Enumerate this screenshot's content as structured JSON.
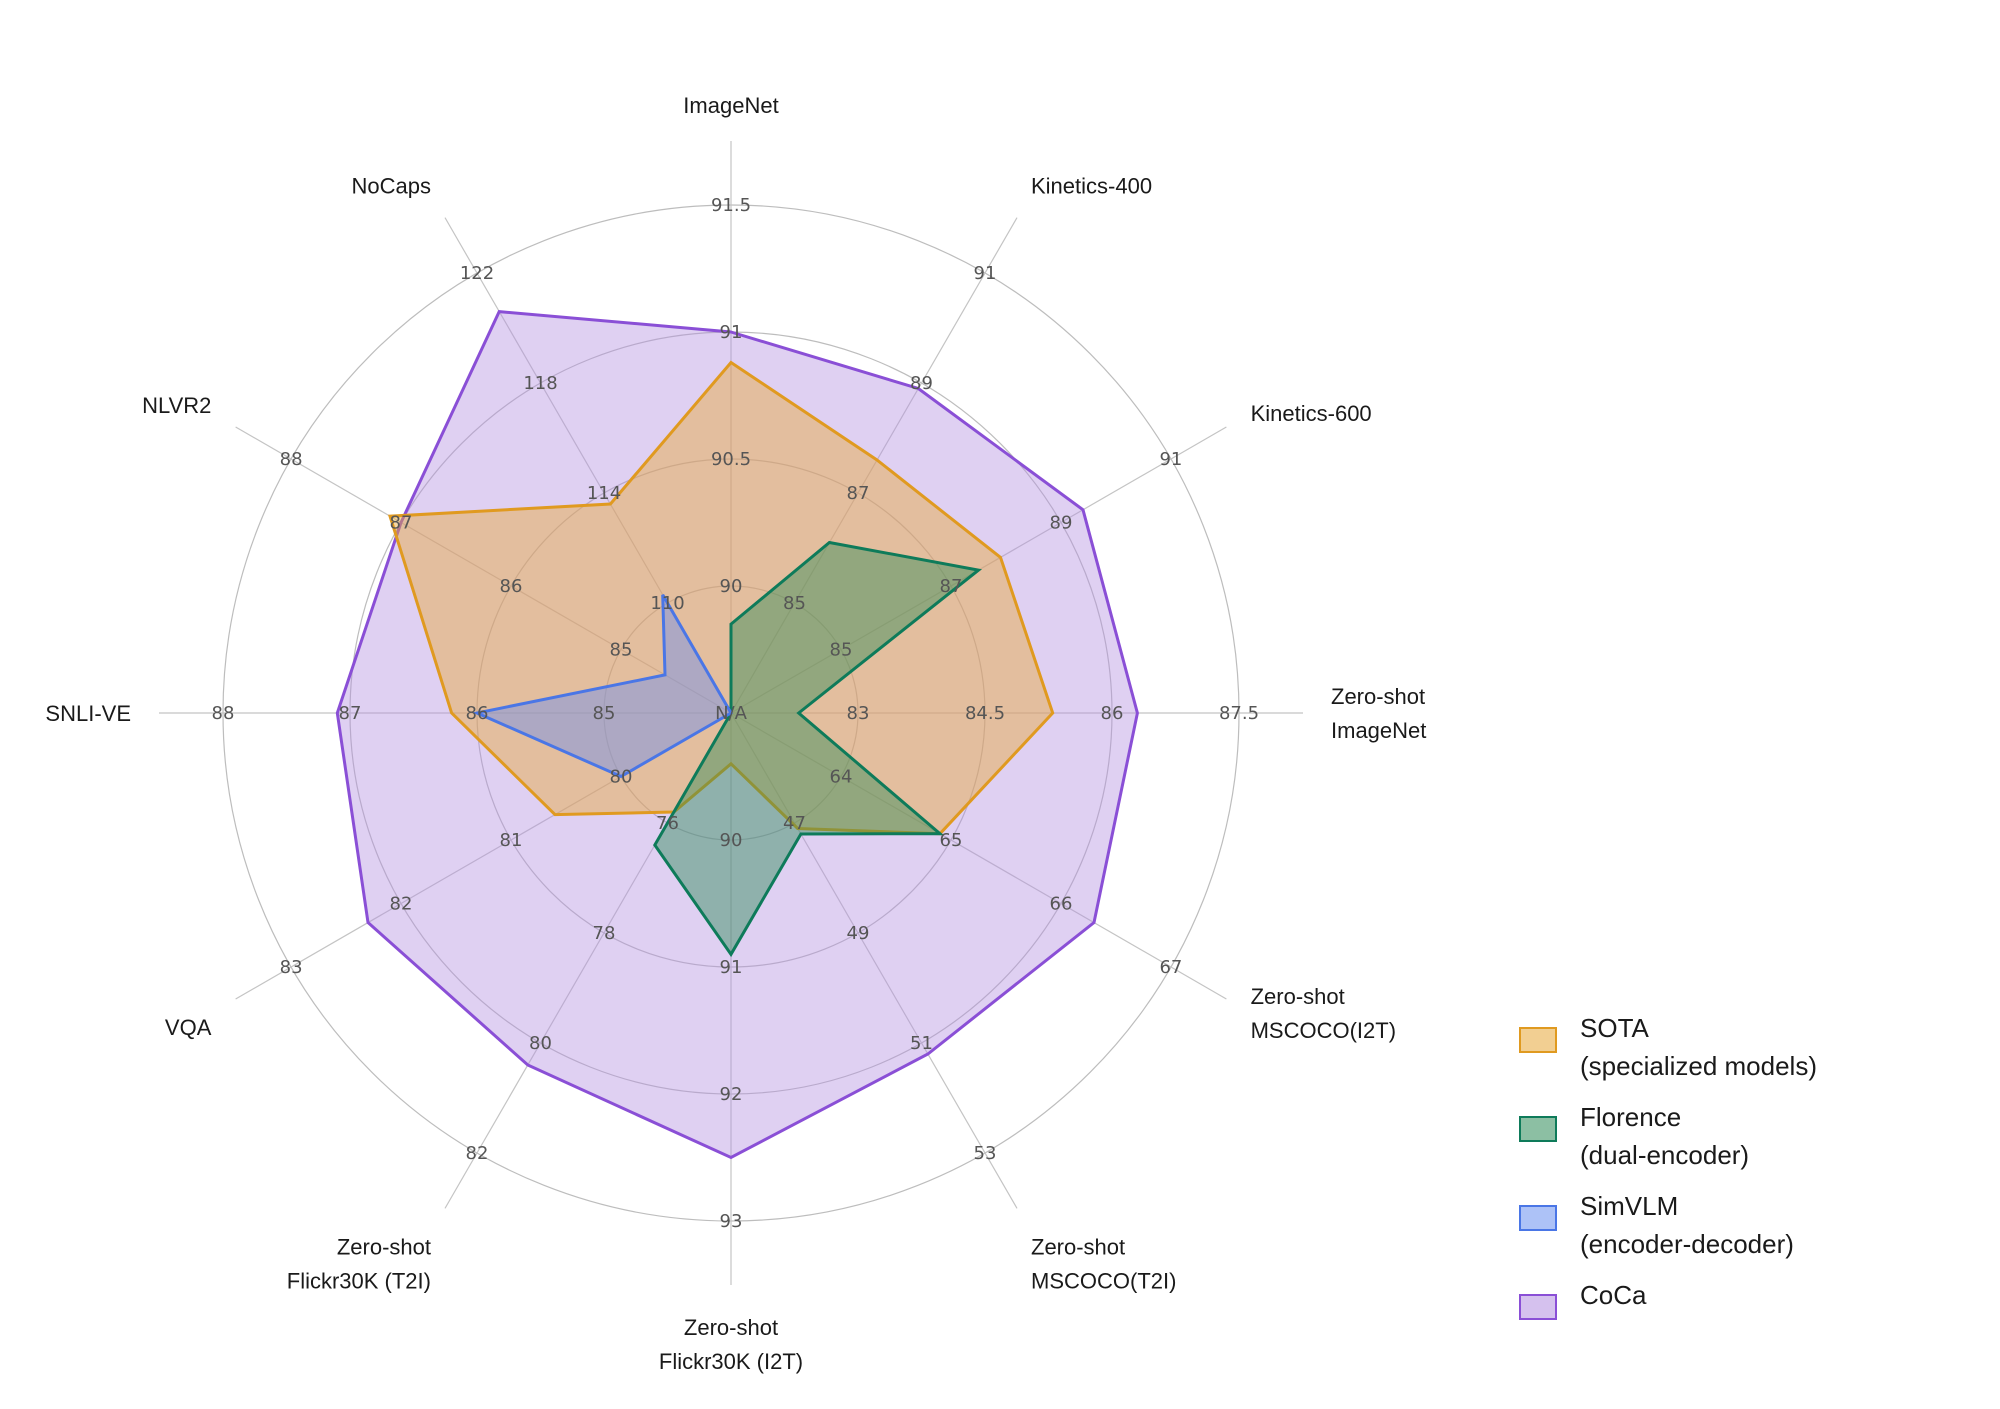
{
  "chart_data": {
    "type": "radar",
    "axes": [
      {
        "name": "ImageNet",
        "lines": [
          "ImageNet"
        ],
        "ticks": [
          "N/A",
          "90",
          "90.5",
          "91",
          "91.5"
        ],
        "tmin": 89.5,
        "tmax": 91.5
      },
      {
        "name": "Kinetics-400",
        "lines": [
          "Kinetics-400"
        ],
        "ticks": [
          "N/A",
          "85",
          "87",
          "89",
          "91"
        ],
        "tmin": 83,
        "tmax": 91
      },
      {
        "name": "Kinetics-600",
        "lines": [
          "Kinetics-600"
        ],
        "ticks": [
          "N/A",
          "85",
          "87",
          "89",
          "91"
        ],
        "tmin": 83,
        "tmax": 91
      },
      {
        "name": "Zero-shot ImageNet",
        "lines": [
          "Zero-shot",
          "ImageNet"
        ],
        "ticks": [
          "N/A",
          "83",
          "84.5",
          "86",
          "87.5"
        ],
        "tmin": 81.5,
        "tmax": 87.5
      },
      {
        "name": "Zero-shot MSCOCO(I2T)",
        "lines": [
          "Zero-shot",
          "MSCOCO(I2T)"
        ],
        "ticks": [
          "N/A",
          "64",
          "65",
          "66",
          "67"
        ],
        "tmin": 63,
        "tmax": 67
      },
      {
        "name": "Zero-shot MSCOCO(T2I)",
        "lines": [
          "Zero-shot",
          "MSCOCO(T2I)"
        ],
        "ticks": [
          "N/A",
          "47",
          "49",
          "51",
          "53"
        ],
        "tmin": 45,
        "tmax": 53
      },
      {
        "name": "Zero-shot Flickr30K (I2T)",
        "lines": [
          "Zero-shot",
          "Flickr30K (I2T)"
        ],
        "ticks": [
          "N/A",
          "90",
          "91",
          "92",
          "93"
        ],
        "tmin": 89,
        "tmax": 93
      },
      {
        "name": "Zero-shot Flickr30K (T2I)",
        "lines": [
          "Zero-shot",
          "Flickr30K (T2I)"
        ],
        "ticks": [
          "N/A",
          "76",
          "78",
          "80",
          "82"
        ],
        "tmin": 74,
        "tmax": 82
      },
      {
        "name": "VQA",
        "lines": [
          "VQA"
        ],
        "ticks": [
          "N/A",
          "80",
          "81",
          "82",
          "83"
        ],
        "tmin": 79,
        "tmax": 83
      },
      {
        "name": "SNLI-VE",
        "lines": [
          "SNLI-VE"
        ],
        "ticks": [
          "N/A",
          "85",
          "86",
          "87",
          "88"
        ],
        "tmin": 84,
        "tmax": 88
      },
      {
        "name": "NLVR2",
        "lines": [
          "NLVR2"
        ],
        "ticks": [
          "N/A",
          "85",
          "86",
          "87",
          "88"
        ],
        "tmin": 84,
        "tmax": 88
      },
      {
        "name": "NoCaps",
        "lines": [
          "NoCaps"
        ],
        "ticks": [
          "N/A",
          "110",
          "114",
          "118",
          "122"
        ],
        "tmin": 106,
        "tmax": 122
      }
    ],
    "series": [
      {
        "name": "SOTA",
        "name_line2": "(specialized models)",
        "fill": "#e8a838",
        "stroke": "#e09a20",
        "values": [
          90.88,
          87.6,
          87.9,
          85.3,
          64.9,
          47.1,
          89.4,
          75.8,
          80.6,
          86.2,
          87.1,
          113.6
        ]
      },
      {
        "name": "Florence",
        "name_line2": "(dual-encoder)",
        "fill": "#2e8b57",
        "stroke": "#0e7b5a",
        "values": [
          89.85,
          86.1,
          87.5,
          82.3,
          64.9,
          47.2,
          90.9,
          76.4,
          null,
          null,
          null,
          null
        ]
      },
      {
        "name": "SimVLM",
        "name_line2": "(encoder-decoder)",
        "fill": "#6a8ff0",
        "stroke": "#4a76e6",
        "values": [
          null,
          null,
          null,
          null,
          null,
          null,
          null,
          null,
          80.0,
          86.0,
          84.6,
          110.3
        ]
      },
      {
        "name": "CoCa",
        "name_line2": "",
        "fill": "#b38ee0",
        "stroke": "#8a4fd6",
        "values": [
          91.0,
          88.9,
          89.4,
          86.3,
          66.3,
          51.2,
          92.5,
          80.4,
          82.3,
          87.1,
          87.0,
          120.6
        ]
      }
    ],
    "legend_position": "bottom-right",
    "grid": true
  }
}
